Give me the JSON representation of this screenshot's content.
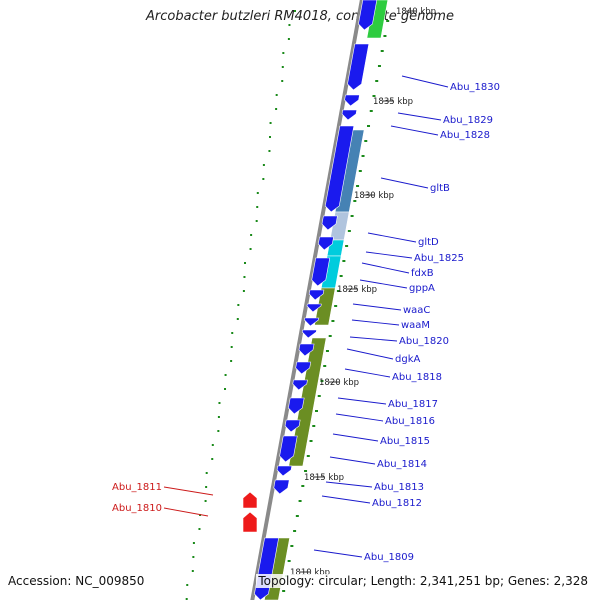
{
  "title": "Arcobacter butzleri RM4018, complete genome",
  "footer": {
    "accession": "Accession: NC_009850",
    "summary": "Topology: circular; Length: 2,341,251 bp; Genes: 2,328"
  },
  "colors": {
    "backbone": "#8a8a8a",
    "cds_forward": "#1a1aee",
    "cds_reverse": "#ee1a1a",
    "cog_green": "#6b8e23",
    "cog_steel": "#4682b4",
    "cog_cyan": "#00ccdd",
    "cog_light": "#b0c4de",
    "gc_skew": "#1a8a1a",
    "label_forward": "#1a1acc",
    "label_reverse": "#cc1a1a",
    "tick_text": "#222222"
  },
  "ticks": [
    "1840 kbp",
    "1835 kbp",
    "1830 kbp",
    "1825 kbp",
    "1820 kbp",
    "1815 kbp",
    "1810 kbp"
  ],
  "gene_labels": [
    {
      "name": "Abu_1830",
      "strand": "forward"
    },
    {
      "name": "Abu_1829",
      "strand": "forward"
    },
    {
      "name": "Abu_1828",
      "strand": "forward"
    },
    {
      "name": "gltB",
      "strand": "forward"
    },
    {
      "name": "gltD",
      "strand": "forward"
    },
    {
      "name": "Abu_1825",
      "strand": "forward"
    },
    {
      "name": "fdxB",
      "strand": "forward"
    },
    {
      "name": "gppA",
      "strand": "forward"
    },
    {
      "name": "waaC",
      "strand": "forward"
    },
    {
      "name": "waaM",
      "strand": "forward"
    },
    {
      "name": "Abu_1820",
      "strand": "forward"
    },
    {
      "name": "dgkA",
      "strand": "forward"
    },
    {
      "name": "Abu_1818",
      "strand": "forward"
    },
    {
      "name": "Abu_1817",
      "strand": "forward"
    },
    {
      "name": "Abu_1816",
      "strand": "forward"
    },
    {
      "name": "Abu_1815",
      "strand": "forward"
    },
    {
      "name": "Abu_1814",
      "strand": "forward"
    },
    {
      "name": "Abu_1813",
      "strand": "forward"
    },
    {
      "name": "Abu_1812",
      "strand": "forward"
    },
    {
      "name": "Abu_1809",
      "strand": "forward"
    },
    {
      "name": "Abu_1811",
      "strand": "reverse"
    },
    {
      "name": "Abu_1810",
      "strand": "reverse"
    }
  ]
}
